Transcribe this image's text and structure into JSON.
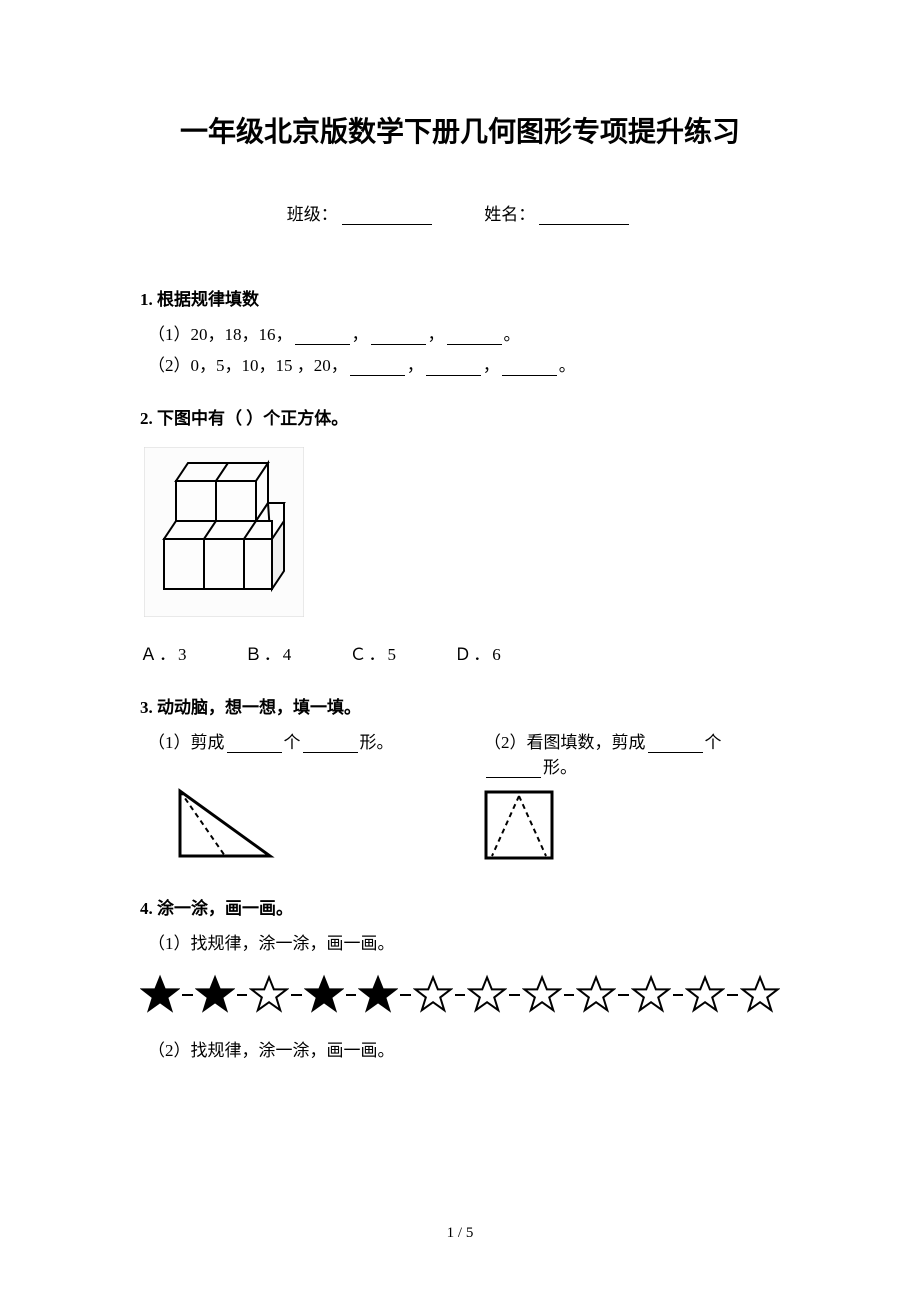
{
  "title": "一年级北京版数学下册几何图形专项提升练习",
  "meta": {
    "class_label": "班级：",
    "name_label": "姓名："
  },
  "q1": {
    "head": "1. 根据规律填数",
    "line1_a": "（1）20，18，16，",
    "line1_b": "，",
    "line1_c": "，",
    "line1_d": "。",
    "line2_a": "（2）0，5，10，15 ，20，",
    "line2_b": "，",
    "line2_c": "，",
    "line2_d": "。"
  },
  "q2": {
    "head": "2. 下图中有（ ）个正方体。",
    "opts": {
      "a": "Ａ．3",
      "b": "Ｂ．4",
      "c": "Ｃ．5",
      "d": "Ｄ．6"
    }
  },
  "q3": {
    "head": "3. 动动脑，想一想，填一填。",
    "left_a": "（1）剪成",
    "left_b": "个",
    "left_c": "形。",
    "right_a": "（2）看图填数，剪成",
    "right_b": "个",
    "right_c": "形。"
  },
  "q4": {
    "head": "4. 涂一涂，画一画。",
    "sub1": "（1）找规律，涂一涂，画一画。",
    "sub2": "（2）找规律，涂一涂，画一画。",
    "stars": [
      true,
      true,
      false,
      true,
      true,
      false,
      false,
      false,
      false,
      false,
      false,
      false
    ]
  },
  "page_num": "1 / 5"
}
